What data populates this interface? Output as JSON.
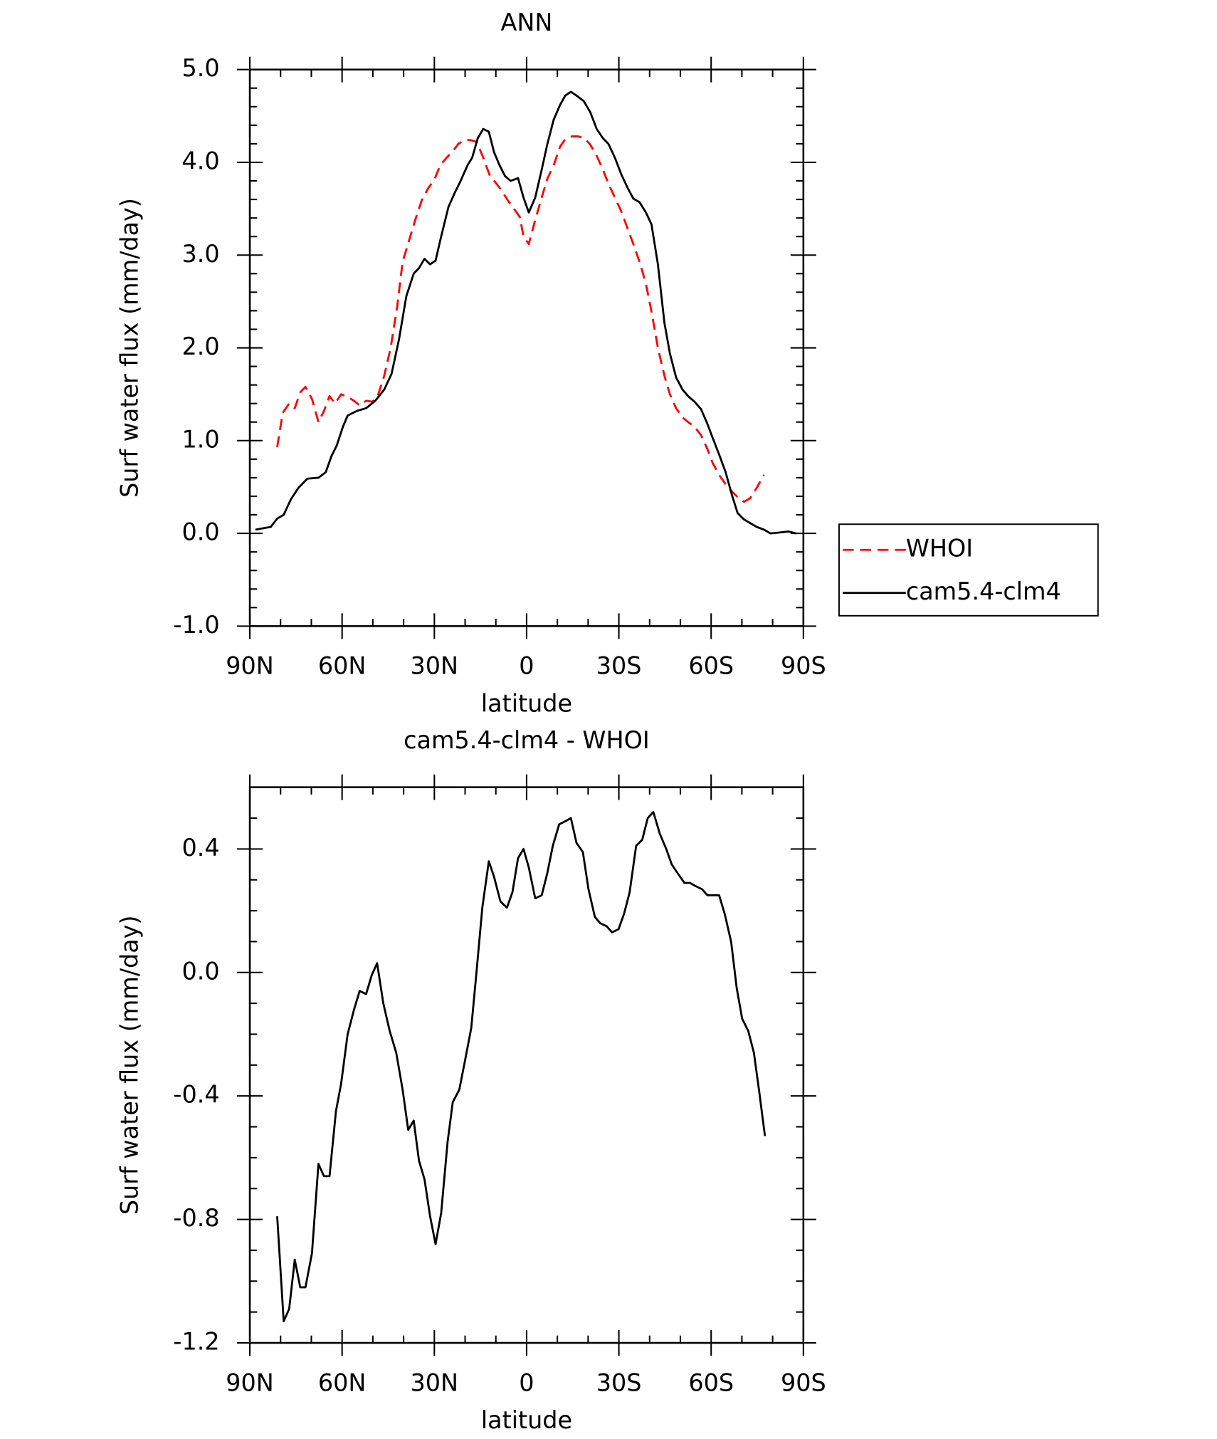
{
  "chart_data": [
    {
      "type": "line",
      "title": "ANN",
      "x_label": "latitude",
      "y_label": "Surf water flux (mm/day)",
      "xlim": [
        90,
        -90
      ],
      "xticks": [
        {
          "value": 90,
          "label": "90N"
        },
        {
          "value": 60,
          "label": "60N"
        },
        {
          "value": 30,
          "label": "30N"
        },
        0,
        {
          "value": -30,
          "label": "30S"
        },
        {
          "value": -60,
          "label": "60S"
        },
        {
          "value": -90,
          "label": "90S"
        }
      ],
      "xminorticks": [
        80,
        70,
        50,
        40,
        20,
        10,
        -10,
        -20,
        -40,
        -50,
        -70,
        -80
      ],
      "ylim": [
        -1,
        5
      ],
      "yticks": [
        {
          "value": -1,
          "label": "-1.0"
        },
        {
          "value": 0,
          "label": "0.0"
        },
        {
          "value": 1,
          "label": "1.0"
        },
        {
          "value": 2,
          "label": "2.0"
        },
        {
          "value": 3,
          "label": "3.0"
        },
        {
          "value": 4,
          "label": "4.0"
        },
        {
          "value": 5,
          "label": "5.0"
        }
      ],
      "yminorticks": [
        -0.8,
        -0.6,
        -0.4,
        -0.2,
        0.2,
        0.4,
        0.6,
        0.8,
        1.2,
        1.4,
        1.6,
        1.8,
        2.2,
        2.4,
        2.6,
        2.8,
        3.2,
        3.4,
        3.6,
        3.8,
        4.2,
        4.4,
        4.6,
        4.8
      ],
      "legend": "right",
      "series": [
        {
          "name": "WHOI",
          "color": "#ff0000",
          "line_style": "dashed",
          "x": [
            81.1,
            79.3,
            77.2,
            75.4,
            73.6,
            71.9,
            69.8,
            67.7,
            65.9,
            64.1,
            62.3,
            60.3,
            58.2,
            56.1,
            54.3,
            52.2,
            50.1,
            48.4,
            46.3,
            44.2,
            42.1,
            40.3,
            38.2,
            36.2,
            34.1,
            32.0,
            29.9,
            28.1,
            26.0,
            24.0,
            22.2,
            20.1,
            18.3,
            16.2,
            14.1,
            12.1,
            10.3,
            8.2,
            6.1,
            4.3,
            2.2,
            1.0,
            -0.7,
            -2.8,
            -4.9,
            -6.7,
            -8.8,
            -10.9,
            -12.6,
            -14.7,
            -16.8,
            -18.9,
            -20.7,
            -22.8,
            -24.8,
            -26.6,
            -28.7,
            -30.8,
            -32.9,
            -34.7,
            -36.7,
            -38.8,
            -40.6,
            -42.7,
            -44.8,
            -46.6,
            -48.6,
            -50.7,
            -52.5,
            -54.6,
            -56.7,
            -58.8,
            -60.5,
            -62.6,
            -64.7,
            -66.8,
            -68.6,
            -70.7,
            -72.7,
            -74.8,
            -77.2
          ],
          "values": [
            0.93,
            1.3,
            1.4,
            1.35,
            1.52,
            1.58,
            1.45,
            1.2,
            1.32,
            1.48,
            1.4,
            1.5,
            1.47,
            1.43,
            1.38,
            1.43,
            1.42,
            1.48,
            1.7,
            2.0,
            2.44,
            2.93,
            3.16,
            3.38,
            3.59,
            3.72,
            3.82,
            3.97,
            4.05,
            4.12,
            4.2,
            4.24,
            4.24,
            4.22,
            4.05,
            3.87,
            3.79,
            3.7,
            3.59,
            3.51,
            3.41,
            3.2,
            3.12,
            3.38,
            3.62,
            3.82,
            3.97,
            4.17,
            4.25,
            4.28,
            4.28,
            4.26,
            4.19,
            4.07,
            3.92,
            3.77,
            3.62,
            3.47,
            3.28,
            3.12,
            2.93,
            2.69,
            2.39,
            2.0,
            1.7,
            1.5,
            1.35,
            1.25,
            1.2,
            1.15,
            1.06,
            0.91,
            0.76,
            0.63,
            0.53,
            0.45,
            0.39,
            0.34,
            0.38,
            0.49,
            0.63
          ]
        },
        {
          "name": "cam5.4-clm4",
          "color": "#000000",
          "line_style": "solid",
          "x": [
            88.2,
            83.2,
            81.1,
            79.0,
            76.6,
            74.2,
            71.3,
            67.7,
            65.3,
            63.5,
            61.7,
            59.7,
            58.2,
            55.2,
            52.2,
            49.2,
            46.3,
            43.9,
            41.5,
            39.1,
            36.7,
            35.0,
            33.2,
            31.4,
            29.6,
            27.8,
            25.4,
            23.4,
            21.6,
            19.2,
            17.7,
            15.9,
            14.1,
            12.3,
            10.6,
            8.8,
            7.0,
            5.2,
            2.8,
            1.0,
            -0.7,
            -2.8,
            -4.9,
            -6.7,
            -8.8,
            -10.9,
            -12.6,
            -14.4,
            -16.2,
            -18.6,
            -20.7,
            -22.8,
            -24.8,
            -26.6,
            -28.7,
            -30.8,
            -32.9,
            -34.7,
            -36.7,
            -38.8,
            -40.6,
            -42.7,
            -44.8,
            -46.6,
            -48.6,
            -50.7,
            -52.5,
            -54.6,
            -56.7,
            -58.8,
            -60.5,
            -62.6,
            -64.7,
            -66.8,
            -68.6,
            -70.7,
            -72.7,
            -74.8,
            -77.2,
            -79.3,
            -82.3,
            -85.2,
            -87.6
          ],
          "values": [
            0.04,
            0.07,
            0.16,
            0.2,
            0.37,
            0.49,
            0.59,
            0.6,
            0.66,
            0.83,
            0.95,
            1.15,
            1.27,
            1.32,
            1.35,
            1.43,
            1.55,
            1.72,
            2.09,
            2.56,
            2.8,
            2.86,
            2.96,
            2.9,
            2.94,
            3.2,
            3.52,
            3.67,
            3.79,
            3.97,
            4.05,
            4.26,
            4.36,
            4.33,
            4.11,
            3.97,
            3.85,
            3.8,
            3.83,
            3.62,
            3.46,
            3.62,
            3.92,
            4.19,
            4.46,
            4.62,
            4.72,
            4.76,
            4.72,
            4.66,
            4.54,
            4.36,
            4.26,
            4.2,
            4.05,
            3.87,
            3.72,
            3.61,
            3.57,
            3.46,
            3.33,
            2.9,
            2.27,
            1.94,
            1.68,
            1.55,
            1.48,
            1.42,
            1.34,
            1.18,
            1.03,
            0.85,
            0.66,
            0.41,
            0.22,
            0.15,
            0.11,
            0.07,
            0.04,
            0.0,
            0.01,
            0.02,
            0.0
          ]
        }
      ]
    },
    {
      "type": "line",
      "title": "cam5.4-clm4 - WHOI",
      "x_label": "latitude",
      "y_label": "Surf water flux (mm/day)",
      "xlim": [
        90,
        -90
      ],
      "xticks": [
        {
          "value": 90,
          "label": "90N"
        },
        {
          "value": 60,
          "label": "60N"
        },
        {
          "value": 30,
          "label": "30N"
        },
        0,
        {
          "value": -30,
          "label": "30S"
        },
        {
          "value": -60,
          "label": "60S"
        },
        {
          "value": -90,
          "label": "90S"
        }
      ],
      "xminorticks": [
        80,
        70,
        50,
        40,
        20,
        10,
        -10,
        -20,
        -40,
        -50,
        -70,
        -80
      ],
      "ylim": [
        -1.2,
        0.6
      ],
      "yticks": [
        {
          "value": -1.2,
          "label": "-1.2"
        },
        {
          "value": -0.8,
          "label": "-0.8"
        },
        {
          "value": -0.4,
          "label": "-0.4"
        },
        {
          "value": 0,
          "label": "0.0"
        },
        0.4
      ],
      "yminorticks": [
        -1.1,
        -1.0,
        -0.9,
        -0.7,
        -0.6,
        -0.5,
        -0.3,
        -0.2,
        -0.1,
        0.1,
        0.2,
        0.3,
        0.5
      ],
      "series": [
        {
          "color": "#000000",
          "line_style": "solid",
          "x": [
            81.1,
            79.0,
            77.2,
            75.4,
            73.6,
            71.9,
            69.8,
            67.7,
            65.9,
            64.1,
            62.0,
            60.3,
            58.2,
            56.1,
            54.3,
            52.2,
            50.4,
            48.6,
            46.6,
            44.5,
            42.4,
            40.3,
            38.5,
            36.7,
            35.0,
            33.2,
            31.4,
            29.6,
            27.8,
            25.7,
            24.0,
            21.9,
            20.1,
            18.0,
            16.2,
            14.4,
            12.3,
            10.6,
            8.5,
            6.4,
            4.6,
            2.8,
            1.0,
            -0.7,
            -2.8,
            -4.9,
            -6.7,
            -8.5,
            -10.6,
            -12.6,
            -14.4,
            -16.2,
            -18.3,
            -20.1,
            -22.2,
            -23.9,
            -26.0,
            -27.8,
            -29.9,
            -31.7,
            -33.5,
            -35.6,
            -37.6,
            -39.4,
            -41.2,
            -43.3,
            -45.4,
            -47.2,
            -49.2,
            -51.3,
            -53.1,
            -54.9,
            -57.0,
            -58.8,
            -60.8,
            -62.6,
            -64.4,
            -66.5,
            -68.3,
            -70.1,
            -72.1,
            -73.9,
            -75.7,
            -77.5
          ],
          "values": [
            -0.79,
            -1.13,
            -1.09,
            -0.93,
            -1.02,
            -1.02,
            -0.91,
            -0.62,
            -0.66,
            -0.66,
            -0.45,
            -0.36,
            -0.2,
            -0.12,
            -0.06,
            -0.07,
            -0.01,
            0.03,
            -0.1,
            -0.19,
            -0.26,
            -0.38,
            -0.51,
            -0.48,
            -0.61,
            -0.67,
            -0.79,
            -0.88,
            -0.78,
            -0.55,
            -0.42,
            -0.38,
            -0.29,
            -0.18,
            0.01,
            0.21,
            0.36,
            0.31,
            0.23,
            0.21,
            0.26,
            0.37,
            0.4,
            0.34,
            0.24,
            0.25,
            0.32,
            0.41,
            0.48,
            0.49,
            0.5,
            0.42,
            0.39,
            0.27,
            0.18,
            0.16,
            0.15,
            0.13,
            0.14,
            0.19,
            0.26,
            0.41,
            0.43,
            0.5,
            0.52,
            0.45,
            0.4,
            0.35,
            0.32,
            0.29,
            0.29,
            0.28,
            0.27,
            0.25,
            0.25,
            0.25,
            0.19,
            0.1,
            -0.05,
            -0.15,
            -0.19,
            -0.26,
            -0.39,
            -0.53
          ]
        }
      ]
    }
  ]
}
